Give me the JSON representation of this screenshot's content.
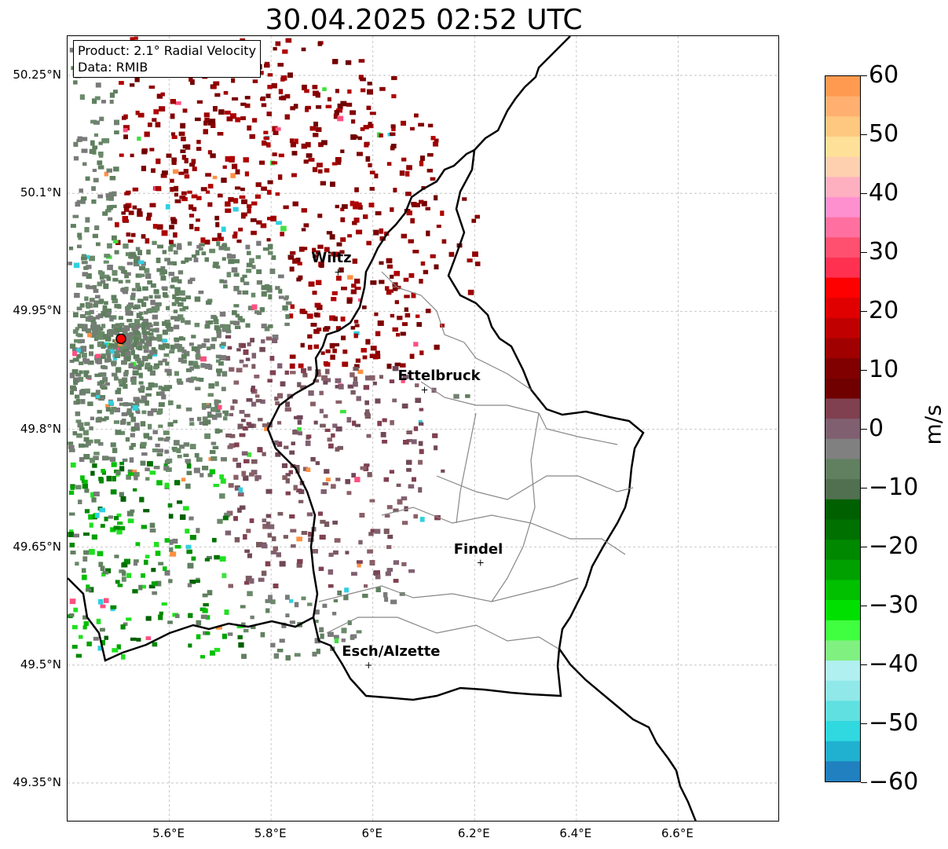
{
  "title": "30.04.2025 02:52 UTC",
  "info_box": {
    "product": "Product: 2.1° Radial Velocity",
    "source": "Data: RMIB"
  },
  "map": {
    "lon_range": [
      5.4,
      6.8
    ],
    "lat_range": [
      49.3,
      50.3
    ],
    "lat_ticks": [
      "50.25°N",
      "50.1°N",
      "49.95°N",
      "49.8°N",
      "49.65°N",
      "49.5°N",
      "49.35°N"
    ],
    "lon_ticks": [
      "5.6°E",
      "5.8°E",
      "6°E",
      "6.2°E",
      "6.4°E",
      "6.6°E"
    ],
    "cities": [
      {
        "name": "Wiltz",
        "lon": 5.93,
        "lat": 50.0
      },
      {
        "name": "Ettelbruck",
        "lon": 6.1,
        "lat": 49.85
      },
      {
        "name": "Findel",
        "lon": 6.21,
        "lat": 49.63
      },
      {
        "name": "Esch/Alzette",
        "lon": 5.99,
        "lat": 49.5
      }
    ],
    "radar_site": {
      "lon": 5.505,
      "lat": 49.915,
      "color": "#ff0000"
    },
    "grid": true
  },
  "colorbar": {
    "unit": "m/s",
    "min": -60,
    "max": 60,
    "tick_labels": [
      "60",
      "50",
      "40",
      "30",
      "20",
      "10",
      "0",
      "−10",
      "−20",
      "−30",
      "−40",
      "−50",
      "−60"
    ],
    "colors": [
      "#ff9a50",
      "#ffb070",
      "#ffc880",
      "#ffe098",
      "#ffd0b0",
      "#ffb0c0",
      "#ff90d0",
      "#ff70a0",
      "#ff5070",
      "#ff3050",
      "#ff0000",
      "#e00000",
      "#c00000",
      "#a00000",
      "#800000",
      "#700000",
      "#804050",
      "#806070",
      "#808080",
      "#608060",
      "#507050",
      "#006000",
      "#007000",
      "#008800",
      "#00a000",
      "#00c000",
      "#00e000",
      "#40ff40",
      "#80f080",
      "#b0f0f0",
      "#90e8e8",
      "#60e0e0",
      "#30d8e0",
      "#20b0d0",
      "#2080c0"
    ]
  }
}
